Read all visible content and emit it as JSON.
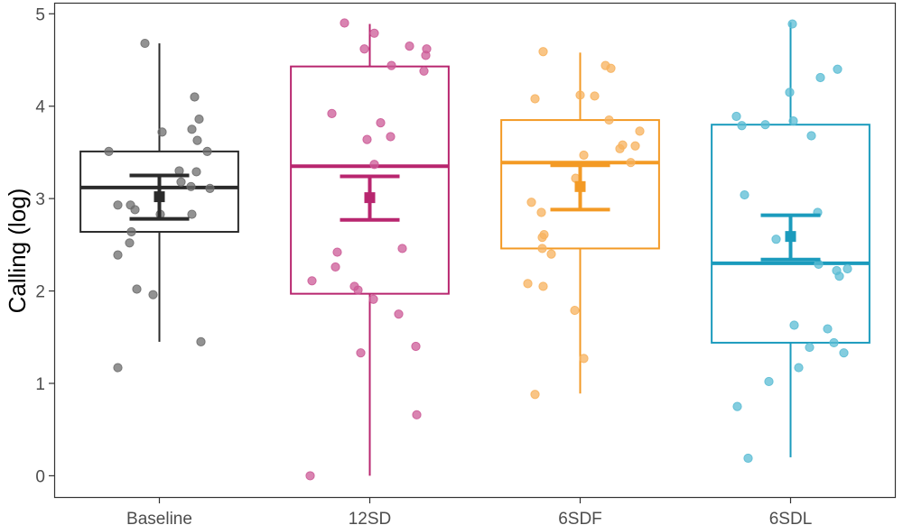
{
  "chart_data": {
    "type": "boxplot",
    "title": "",
    "xlabel": "",
    "ylabel": "Calling (log)",
    "ylim": [
      -0.24,
      5.12
    ],
    "yticks": [
      0,
      1,
      2,
      3,
      4,
      5
    ],
    "grid": false,
    "legend": "none",
    "categories": [
      "Baseline",
      "12SD",
      "6SDF",
      "6SDL"
    ],
    "colors": [
      "#2b2b2b",
      "#b8266f",
      "#f39a25",
      "#1b9bbd"
    ],
    "point_colors": [
      "#6e6e6e",
      "#cc5b97",
      "#f7b25e",
      "#5bbcd4"
    ],
    "series": [
      {
        "category": "Baseline",
        "box": {
          "whisker_low": 1.45,
          "q1": 2.64,
          "median": 3.12,
          "q3": 3.51,
          "whisker_high": 4.68
        },
        "mean": 3.02,
        "error": [
          2.78,
          3.25
        ],
        "points": [
          4.68,
          4.1,
          3.86,
          3.75,
          3.72,
          3.63,
          3.51,
          3.51,
          3.3,
          3.29,
          3.18,
          3.13,
          3.11,
          2.93,
          2.93,
          2.88,
          2.83,
          2.83,
          2.64,
          2.52,
          2.39,
          2.02,
          1.96,
          1.45,
          1.17
        ]
      },
      {
        "category": "12SD",
        "box": {
          "whisker_low": 0.0,
          "q1": 1.97,
          "median": 3.35,
          "q3": 4.43,
          "whisker_high": 4.89
        },
        "mean": 3.01,
        "error": [
          2.77,
          3.24
        ],
        "points": [
          4.9,
          4.79,
          4.62,
          4.65,
          4.62,
          4.55,
          4.44,
          4.38,
          3.92,
          3.82,
          3.64,
          3.67,
          3.37,
          2.42,
          2.46,
          2.26,
          2.11,
          2.05,
          2.01,
          1.91,
          1.75,
          1.4,
          1.33,
          0.66,
          0.0
        ]
      },
      {
        "category": "6SDF",
        "box": {
          "whisker_low": 0.89,
          "q1": 2.46,
          "median": 3.39,
          "q3": 3.85,
          "whisker_high": 4.58
        },
        "mean": 3.13,
        "error": [
          2.88,
          3.36
        ],
        "points": [
          4.59,
          4.44,
          4.41,
          4.08,
          4.12,
          4.11,
          3.85,
          3.73,
          3.58,
          3.54,
          3.57,
          3.47,
          3.39,
          3.22,
          2.96,
          2.85,
          2.61,
          2.58,
          2.46,
          2.4,
          2.08,
          2.05,
          1.79,
          1.27,
          0.88
        ]
      },
      {
        "category": "6SDL",
        "box": {
          "whisker_low": 0.2,
          "q1": 1.44,
          "median": 2.3,
          "q3": 3.8,
          "whisker_high": 4.91
        },
        "mean": 2.59,
        "error": [
          2.34,
          2.82
        ],
        "points": [
          4.89,
          4.4,
          4.31,
          4.15,
          3.89,
          3.79,
          3.8,
          3.84,
          3.68,
          3.04,
          2.85,
          2.56,
          2.29,
          2.22,
          2.24,
          2.16,
          1.63,
          1.59,
          1.44,
          1.39,
          1.33,
          1.17,
          1.02,
          0.75,
          0.19
        ]
      }
    ]
  }
}
